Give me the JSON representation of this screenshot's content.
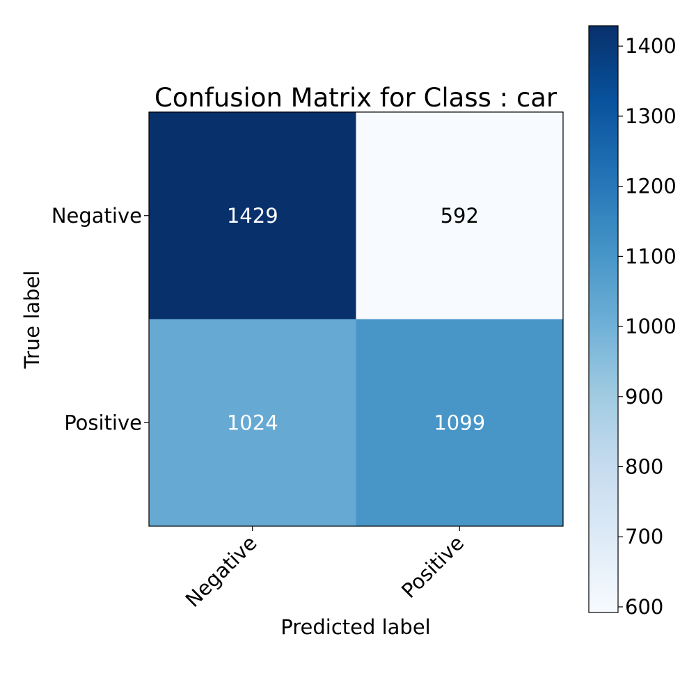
{
  "chart_data": {
    "type": "heatmap",
    "title": "Confusion Matrix for Class : car",
    "xlabel": "Predicted label",
    "ylabel": "True label",
    "x_categories": [
      "Negative",
      "Positive"
    ],
    "y_categories": [
      "Negative",
      "Positive"
    ],
    "values": [
      [
        1429,
        592
      ],
      [
        1024,
        1099
      ]
    ],
    "colormap": "Blues",
    "color_range": [
      592,
      1429
    ],
    "colorbar_ticks": [
      600,
      700,
      800,
      900,
      1000,
      1100,
      1200,
      1300,
      1400
    ],
    "text_color_dark_cells": "#ffffff",
    "text_color_light_cells": "#000000",
    "grid": false
  }
}
